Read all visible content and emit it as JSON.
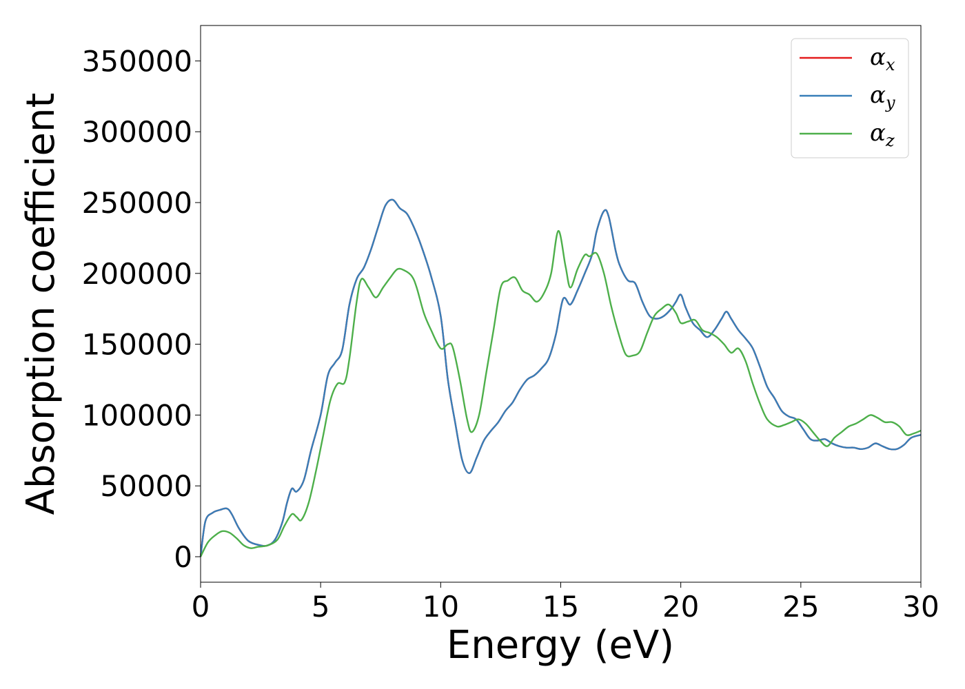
{
  "chart_data": {
    "type": "line",
    "title": "",
    "xlabel": "Energy (eV)",
    "ylabel": "Absorption coefficient",
    "xlim": [
      0,
      30
    ],
    "ylim": [
      -18000,
      375000
    ],
    "x_ticks": [
      "0",
      "5",
      "10",
      "15",
      "20",
      "25",
      "30"
    ],
    "y_ticks": [
      "0",
      "50000",
      "100000",
      "150000",
      "200000",
      "250000",
      "300000",
      "350000"
    ],
    "x_tick_values": [
      0,
      5,
      10,
      15,
      20,
      25,
      30
    ],
    "y_tick_values": [
      0,
      50000,
      100000,
      150000,
      200000,
      250000,
      300000,
      350000
    ],
    "grid": false,
    "legend_position": "top-right",
    "series": [
      {
        "name": "α",
        "subscript": "x",
        "color": "#e41a1c",
        "x": [
          0,
          0.2,
          0.5,
          0.8,
          1.1,
          1.3,
          1.6,
          2.0,
          2.5,
          2.8,
          3.1,
          3.4,
          3.6,
          3.8,
          4.0,
          4.3,
          4.6,
          5.0,
          5.3,
          5.6,
          5.9,
          6.2,
          6.5,
          6.8,
          7.1,
          7.4,
          7.7,
          8.0,
          8.3,
          8.6,
          8.9,
          9.2,
          9.6,
          10.0,
          10.3,
          10.6,
          10.9,
          11.2,
          11.5,
          11.8,
          12.1,
          12.4,
          12.7,
          13.0,
          13.3,
          13.6,
          13.9,
          14.2,
          14.5,
          14.8,
          15.1,
          15.4,
          15.7,
          16.0,
          16.3,
          16.5,
          16.8,
          17.0,
          17.3,
          17.5,
          17.8,
          18.1,
          18.4,
          18.7,
          19.0,
          19.3,
          19.6,
          19.8,
          20.0,
          20.2,
          20.5,
          20.8,
          21.1,
          21.4,
          21.7,
          21.9,
          22.1,
          22.4,
          22.7,
          23.0,
          23.3,
          23.6,
          23.9,
          24.2,
          24.5,
          24.8,
          25.1,
          25.4,
          25.7,
          26.0,
          26.3,
          26.6,
          26.9,
          27.2,
          27.5,
          27.8,
          28.1,
          28.4,
          28.7,
          29.0,
          29.3,
          29.6,
          30.0
        ],
        "values": [
          0,
          25000,
          31000,
          33000,
          34000,
          30000,
          20000,
          11000,
          8000,
          8000,
          12000,
          24000,
          38000,
          48000,
          46000,
          54000,
          75000,
          100000,
          128000,
          137000,
          146000,
          178000,
          196000,
          204000,
          217000,
          233000,
          248000,
          252000,
          246000,
          242000,
          232000,
          219000,
          198000,
          170000,
          125000,
          95000,
          68000,
          59000,
          70000,
          82000,
          89000,
          95000,
          103000,
          109000,
          118000,
          125000,
          128000,
          133000,
          140000,
          157000,
          182000,
          178000,
          188000,
          200000,
          213000,
          230000,
          244000,
          240000,
          215000,
          204000,
          195000,
          193000,
          180000,
          170000,
          168000,
          170000,
          175000,
          180000,
          185000,
          176000,
          165000,
          160000,
          155000,
          160000,
          168000,
          173000,
          168000,
          160000,
          154000,
          147000,
          134000,
          120000,
          112000,
          103000,
          99000,
          97000,
          90000,
          83000,
          82000,
          83000,
          80000,
          78000,
          77000,
          77000,
          76000,
          77000,
          80000,
          78000,
          76000,
          76000,
          79000,
          84000,
          86000
        ]
      },
      {
        "name": "α",
        "subscript": "y",
        "color": "#377eb8",
        "x": [
          0,
          0.2,
          0.5,
          0.8,
          1.1,
          1.3,
          1.6,
          2.0,
          2.5,
          2.8,
          3.1,
          3.4,
          3.6,
          3.8,
          4.0,
          4.3,
          4.6,
          5.0,
          5.3,
          5.6,
          5.9,
          6.2,
          6.5,
          6.8,
          7.1,
          7.4,
          7.7,
          8.0,
          8.3,
          8.6,
          8.9,
          9.2,
          9.6,
          10.0,
          10.3,
          10.6,
          10.9,
          11.2,
          11.5,
          11.8,
          12.1,
          12.4,
          12.7,
          13.0,
          13.3,
          13.6,
          13.9,
          14.2,
          14.5,
          14.8,
          15.1,
          15.4,
          15.7,
          16.0,
          16.3,
          16.5,
          16.8,
          17.0,
          17.3,
          17.5,
          17.8,
          18.1,
          18.4,
          18.7,
          19.0,
          19.3,
          19.6,
          19.8,
          20.0,
          20.2,
          20.5,
          20.8,
          21.1,
          21.4,
          21.7,
          21.9,
          22.1,
          22.4,
          22.7,
          23.0,
          23.3,
          23.6,
          23.9,
          24.2,
          24.5,
          24.8,
          25.1,
          25.4,
          25.7,
          26.0,
          26.3,
          26.6,
          26.9,
          27.2,
          27.5,
          27.8,
          28.1,
          28.4,
          28.7,
          29.0,
          29.3,
          29.6,
          30.0
        ],
        "values": [
          0,
          25000,
          31000,
          33000,
          34000,
          30000,
          20000,
          11000,
          8000,
          8000,
          12000,
          24000,
          38000,
          48000,
          46000,
          54000,
          75000,
          100000,
          128000,
          137000,
          146000,
          178000,
          196000,
          204000,
          217000,
          233000,
          248000,
          252000,
          246000,
          242000,
          232000,
          219000,
          198000,
          170000,
          125000,
          95000,
          68000,
          59000,
          70000,
          82000,
          89000,
          95000,
          103000,
          109000,
          118000,
          125000,
          128000,
          133000,
          140000,
          157000,
          182000,
          178000,
          188000,
          200000,
          213000,
          230000,
          244000,
          240000,
          215000,
          204000,
          195000,
          193000,
          180000,
          170000,
          168000,
          170000,
          175000,
          180000,
          185000,
          176000,
          165000,
          160000,
          155000,
          160000,
          168000,
          173000,
          168000,
          160000,
          154000,
          147000,
          134000,
          120000,
          112000,
          103000,
          99000,
          97000,
          90000,
          83000,
          82000,
          83000,
          80000,
          78000,
          77000,
          77000,
          76000,
          77000,
          80000,
          78000,
          76000,
          76000,
          79000,
          84000,
          86000
        ]
      },
      {
        "name": "α",
        "subscript": "z",
        "color": "#4daf4a",
        "x": [
          0,
          0.3,
          0.6,
          0.9,
          1.2,
          1.5,
          1.8,
          2.1,
          2.4,
          2.8,
          3.2,
          3.5,
          3.8,
          4.0,
          4.2,
          4.5,
          4.8,
          5.1,
          5.4,
          5.7,
          6.0,
          6.2,
          6.5,
          6.7,
          7.0,
          7.3,
          7.6,
          7.9,
          8.2,
          8.5,
          8.8,
          9.0,
          9.3,
          9.6,
          10.0,
          10.3,
          10.5,
          10.8,
          11.1,
          11.3,
          11.6,
          11.9,
          12.2,
          12.5,
          12.8,
          13.1,
          13.4,
          13.7,
          14.0,
          14.3,
          14.6,
          14.9,
          15.2,
          15.4,
          15.7,
          16.0,
          16.2,
          16.5,
          16.8,
          17.1,
          17.4,
          17.7,
          18.0,
          18.3,
          18.6,
          18.9,
          19.2,
          19.5,
          19.8,
          20.0,
          20.3,
          20.6,
          20.9,
          21.2,
          21.5,
          21.8,
          22.1,
          22.4,
          22.7,
          23.0,
          23.3,
          23.6,
          24.0,
          24.3,
          24.6,
          24.9,
          25.2,
          25.5,
          25.8,
          26.1,
          26.4,
          26.7,
          27.0,
          27.3,
          27.6,
          27.9,
          28.2,
          28.5,
          28.8,
          29.1,
          29.4,
          29.7,
          30.0
        ],
        "values": [
          0,
          10000,
          15000,
          18000,
          17000,
          13000,
          8000,
          6000,
          7000,
          8000,
          12000,
          22000,
          30000,
          28000,
          26000,
          38000,
          60000,
          85000,
          110000,
          122000,
          123000,
          140000,
          180000,
          196000,
          190000,
          183000,
          190000,
          197000,
          203000,
          202000,
          198000,
          190000,
          172000,
          160000,
          147000,
          150000,
          148000,
          125000,
          97000,
          88000,
          100000,
          130000,
          160000,
          190000,
          195000,
          197000,
          188000,
          185000,
          180000,
          186000,
          200000,
          230000,
          205000,
          190000,
          203000,
          213000,
          212000,
          214000,
          200000,
          177000,
          158000,
          143000,
          142000,
          145000,
          158000,
          170000,
          175000,
          178000,
          172000,
          165000,
          166000,
          167000,
          160000,
          158000,
          155000,
          150000,
          144000,
          147000,
          138000,
          122000,
          108000,
          97000,
          92000,
          93000,
          95000,
          97000,
          94000,
          88000,
          82000,
          78000,
          84000,
          88000,
          92000,
          94000,
          97000,
          100000,
          98000,
          95000,
          95000,
          92000,
          86000,
          87000,
          89000
        ]
      }
    ]
  }
}
